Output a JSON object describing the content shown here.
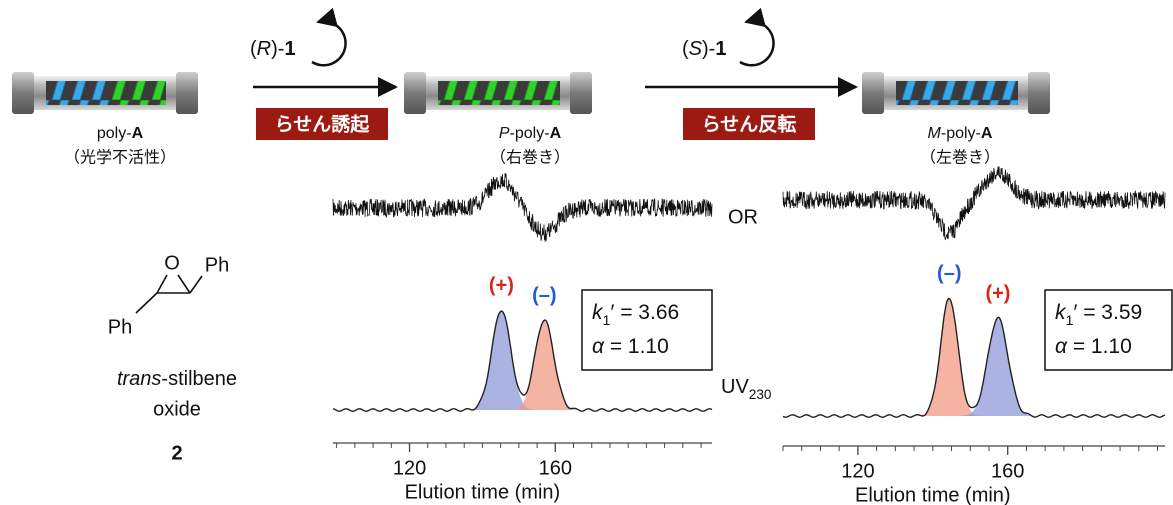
{
  "scheme": {
    "columns": [
      {
        "name": [
          {
            "text": "poly-"
          },
          {
            "text": "A",
            "style": "bold"
          }
        ],
        "note": "（光学不活性）"
      },
      {
        "name": [
          {
            "text": "P",
            "style": "italic"
          },
          {
            "text": "-poly-"
          },
          {
            "text": "A",
            "style": "bold"
          }
        ],
        "note": "（右巻き）"
      },
      {
        "name": [
          {
            "text": "M",
            "style": "italic"
          },
          {
            "text": "-poly-"
          },
          {
            "text": "A",
            "style": "bold"
          }
        ],
        "note": "（左巻き）"
      }
    ],
    "steps": [
      {
        "reagent": [
          {
            "text": "("
          },
          {
            "text": "R",
            "style": "italic"
          },
          {
            "text": ")-"
          },
          {
            "text": "1",
            "style": "bold"
          }
        ],
        "label": "らせん誘起"
      },
      {
        "reagent": [
          {
            "text": "("
          },
          {
            "text": "S",
            "style": "italic"
          },
          {
            "text": ")-"
          },
          {
            "text": "1",
            "style": "bold"
          }
        ],
        "label": "らせん反転"
      }
    ]
  },
  "compound": {
    "oxygen": "O",
    "substituent_top": "Ph",
    "substituent_bottom": "Ph",
    "name": [
      {
        "text": "trans",
        "style": "italic"
      },
      {
        "text": "-stilbene"
      }
    ],
    "name_line2": "oxide",
    "number": "2"
  },
  "trace_labels": {
    "optical_rotation": "OR",
    "uv": [
      {
        "text": "UV"
      },
      {
        "text": "230",
        "style": "sub"
      }
    ]
  },
  "chromatograms": [
    {
      "xlabel": "Elution time (min)",
      "xlim": [
        99,
        203
      ],
      "xticks": [
        120,
        160
      ],
      "xminor_ticks": [
        100,
        105,
        110,
        115,
        125,
        130,
        135,
        140,
        145,
        150,
        155,
        165,
        170,
        175,
        180,
        185,
        190,
        195,
        200
      ],
      "peaks": [
        {
          "label": "(+)",
          "label_color": "#d8261b",
          "fill": "#8e9ad8",
          "center": 145.2,
          "height": 100,
          "sigma": 2.6,
          "or_sign": 1
        },
        {
          "label": "(–)",
          "label_color": "#1f5bd6",
          "fill": "#f29a86",
          "center": 157.0,
          "height": 90,
          "sigma": 2.6,
          "or_sign": -1
        }
      ],
      "stats": [
        [
          {
            "text": "k",
            "style": "italic"
          },
          {
            "text": "1",
            "style": "sub"
          },
          {
            "text": "′ = 3.66"
          }
        ],
        [
          {
            "text": "α",
            "style": "italic"
          },
          {
            "text": " = 1.10"
          }
        ]
      ]
    },
    {
      "xlabel": "Elution time (min)",
      "xlim": [
        100,
        202
      ],
      "xticks": [
        120,
        160
      ],
      "xminor_ticks": [
        100,
        105,
        110,
        115,
        125,
        130,
        135,
        140,
        145,
        150,
        155,
        165,
        170,
        175,
        180,
        185,
        190,
        195,
        200
      ],
      "peaks": [
        {
          "label": "(–)",
          "label_color": "#1f5bd6",
          "fill": "#f29a86",
          "center": 144.4,
          "height": 118,
          "sigma": 2.3,
          "or_sign": -1
        },
        {
          "label": "(+)",
          "label_color": "#d8261b",
          "fill": "#8e9ad8",
          "center": 157.4,
          "height": 98,
          "sigma": 2.7,
          "or_sign": 1
        }
      ],
      "stats": [
        [
          {
            "text": "k",
            "style": "italic"
          },
          {
            "text": "1",
            "style": "sub"
          },
          {
            "text": "′ = 3.59"
          }
        ],
        [
          {
            "text": "α",
            "style": "italic"
          },
          {
            "text": " = 1.10"
          }
        ]
      ]
    }
  ]
}
